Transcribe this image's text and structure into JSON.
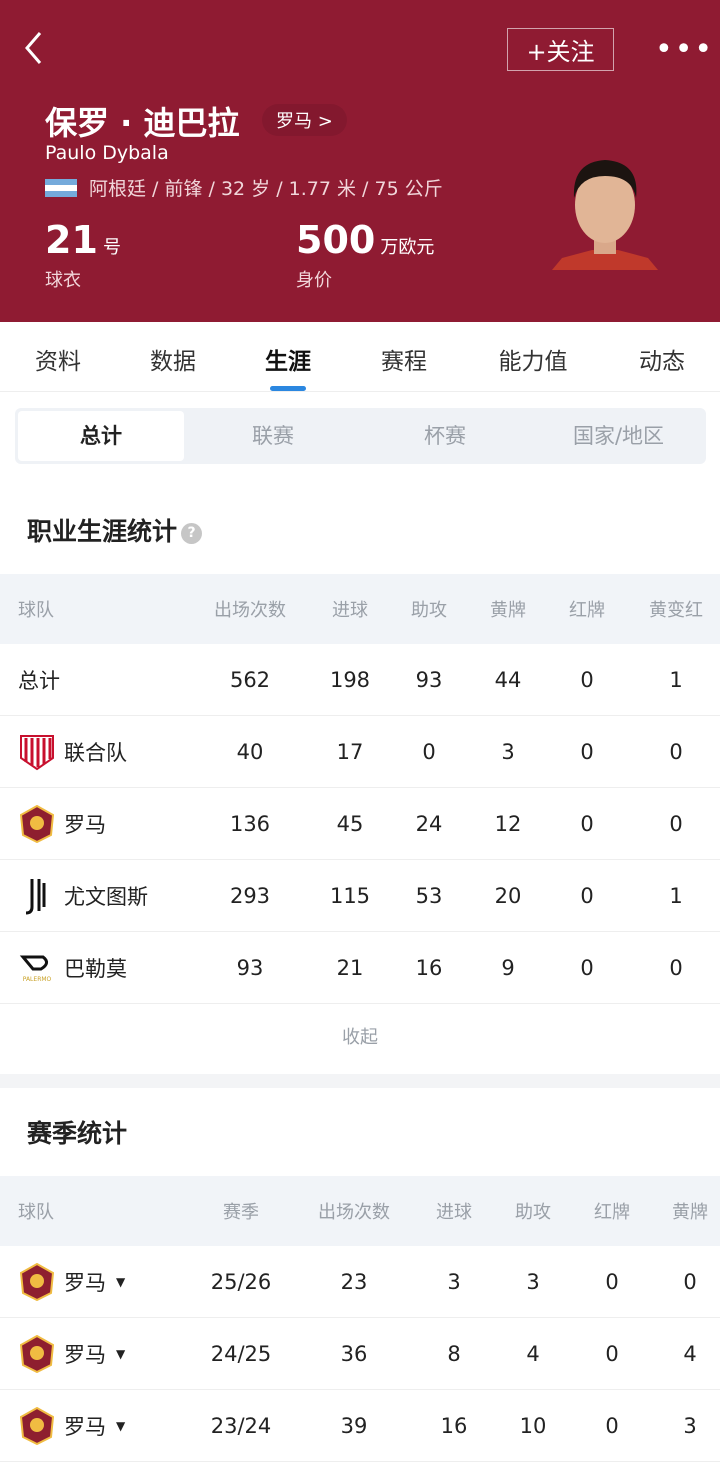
{
  "header": {
    "follow_label": "+关注",
    "more_icon": "more-icon",
    "name_cn": "保罗 · 迪巴拉",
    "team_link": "罗马 >",
    "name_en": "Paulo Dybala",
    "info": "阿根廷 / 前锋 / 32 岁 / 1.77 米 / 75 公斤",
    "shirt_number": "21",
    "shirt_unit": "号",
    "shirt_label": "球衣",
    "value": "500",
    "value_unit": "万欧元",
    "value_label": "身价",
    "bg_color": "#8f1b32"
  },
  "tabs": [
    "资料",
    "数据",
    "生涯",
    "赛程",
    "能力值",
    "动态"
  ],
  "active_tab": "生涯",
  "segments": [
    "总计",
    "联赛",
    "杯赛",
    "国家/地区"
  ],
  "career": {
    "title": "职业生涯统计",
    "help": "?",
    "headers": [
      "球队",
      "出场次数",
      "进球",
      "助攻",
      "黄牌",
      "红牌",
      "黄变红"
    ],
    "rows": [
      [
        "总计",
        "562",
        "198",
        "93",
        "44",
        "0",
        "1"
      ],
      [
        "联合队",
        "40",
        "17",
        "0",
        "3",
        "0",
        "0"
      ],
      [
        "罗马",
        "136",
        "45",
        "24",
        "12",
        "0",
        "0"
      ],
      [
        "尤文图斯",
        "293",
        "115",
        "53",
        "20",
        "0",
        "1"
      ],
      [
        "巴勒莫",
        "93",
        "21",
        "16",
        "9",
        "0",
        "0"
      ]
    ],
    "collapse": "收起"
  },
  "season": {
    "title": "赛季统计",
    "headers": [
      "球队",
      "赛季",
      "出场次数",
      "进球",
      "助攻",
      "红牌",
      "黄牌"
    ],
    "rows": [
      [
        "罗马",
        "25/26",
        "23",
        "3",
        "3",
        "0",
        "0"
      ],
      [
        "罗马",
        "24/25",
        "36",
        "8",
        "4",
        "0",
        "4"
      ],
      [
        "罗马",
        "23/24",
        "39",
        "16",
        "10",
        "0",
        "3"
      ]
    ]
  }
}
